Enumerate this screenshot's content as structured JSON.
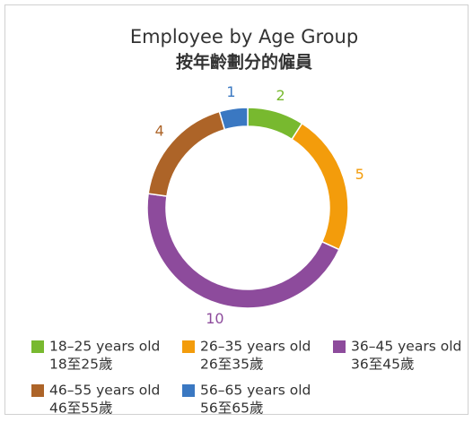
{
  "chart_data": {
    "type": "donut",
    "title": "Employee by Age Group",
    "subtitle": "按年齡劃分的僱員",
    "categories": [
      "18–25 years old",
      "26–35 years old",
      "36–45 years old",
      "46–55 years old",
      "56–65 years old"
    ],
    "categories_chinese": [
      "18至25歲",
      "26至35歲",
      "36至45歲",
      "46至55歲",
      "56至65歲"
    ],
    "values": [
      2,
      5,
      10,
      4,
      1
    ],
    "colors": [
      "#78b92f",
      "#f39c0b",
      "#8d4b9c",
      "#ad6428",
      "#3a78c2"
    ],
    "legend": "bottom"
  }
}
